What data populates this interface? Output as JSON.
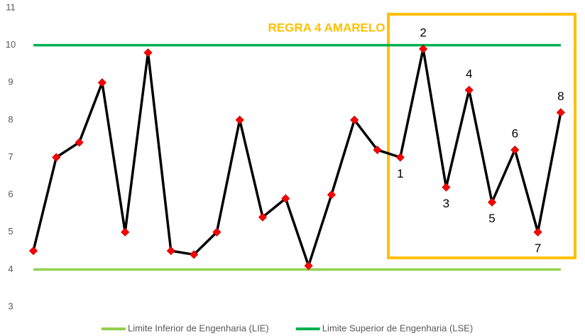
{
  "chart_data": {
    "type": "line",
    "annotation": "REGRA 4 AMARELO",
    "ylim": [
      3,
      11
    ],
    "yticks": [
      3,
      4,
      5,
      6,
      7,
      8,
      9,
      10,
      11
    ],
    "series": [
      {
        "name": "Limite Inferior de Engenharia (LIE)",
        "color": "#92d050",
        "values": [
          4,
          4,
          4,
          4,
          4,
          4,
          4,
          4,
          4,
          4,
          4,
          4,
          4,
          4,
          4,
          4,
          4,
          4,
          4,
          4,
          4,
          4,
          4,
          4
        ]
      },
      {
        "name": "Limite Superior de Engenharia (LSE)",
        "color": "#00b050",
        "values": [
          10,
          10,
          10,
          10,
          10,
          10,
          10,
          10,
          10,
          10,
          10,
          10,
          10,
          10,
          10,
          10,
          10,
          10,
          10,
          10,
          10,
          10,
          10,
          10
        ]
      },
      {
        "color": "#000000",
        "marker_color": "#ff0000",
        "values": [
          4.5,
          7,
          7.4,
          9,
          5,
          9.8,
          4.5,
          4.4,
          5,
          8,
          5.4,
          5.9,
          4.1,
          6,
          8,
          7.2,
          7,
          9.9,
          6.2,
          8.8,
          5.8,
          7.2,
          5,
          8.2
        ],
        "point_labels": [
          null,
          null,
          null,
          null,
          null,
          null,
          null,
          null,
          null,
          null,
          null,
          null,
          null,
          null,
          null,
          null,
          "1",
          "2",
          "3",
          "4",
          "5",
          "6",
          "7",
          "8"
        ]
      }
    ]
  }
}
